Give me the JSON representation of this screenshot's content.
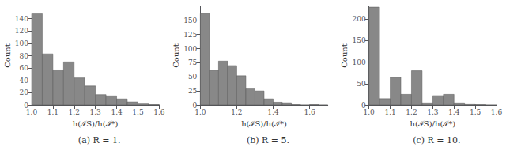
{
  "chart_data": [
    {
      "type": "histogram",
      "title": "(a) R = 1.",
      "xlabel": "h(ℐS)/h(ℐ*)",
      "ylabel": "Count",
      "xlim": [
        1.0,
        1.6
      ],
      "ylim": [
        0,
        160
      ],
      "xticks": [
        {
          "value": 1.0,
          "label": "1.0"
        },
        1.1,
        1.2,
        1.3,
        1.4,
        1.5,
        1.6
      ],
      "yticks": [
        0,
        20,
        40,
        60,
        80,
        100,
        120,
        140
      ],
      "bins": [
        1.0,
        1.05,
        1.1,
        1.15,
        1.2,
        1.25,
        1.3,
        1.35,
        1.4,
        1.45,
        1.5,
        1.55,
        1.6
      ],
      "values": [
        148,
        83,
        57,
        70,
        44,
        31,
        17,
        15,
        10,
        5,
        3,
        1
      ],
      "color": "#888888",
      "grid": false
    },
    {
      "type": "histogram",
      "title": "(b) R = 5.",
      "xlabel": "h(ℐS)/h(ℐ*)",
      "ylabel": "Count",
      "xlim": [
        1.0,
        1.7
      ],
      "ylim": [
        0,
        175
      ],
      "xticks": [
        {
          "value": 1.0,
          "label": "1.0"
        },
        1.2,
        1.4,
        1.6
      ],
      "yticks": [
        0,
        25,
        50,
        75,
        100,
        125,
        150
      ],
      "bins": [
        1.0,
        1.05,
        1.1,
        1.15,
        1.2,
        1.25,
        1.3,
        1.35,
        1.4,
        1.45,
        1.5,
        1.55,
        1.6,
        1.65,
        1.7
      ],
      "values": [
        162,
        62,
        78,
        70,
        52,
        30,
        25,
        11,
        5,
        4,
        1,
        0,
        1,
        0
      ],
      "color": "#888888",
      "grid": false
    },
    {
      "type": "histogram",
      "title": "(c) R = 10.",
      "xlabel": "h(ℐS)/h(ℐ*)",
      "ylabel": "Count",
      "xlim": [
        1.0,
        1.6
      ],
      "ylim": [
        0,
        230
      ],
      "xticks": [
        {
          "value": 1.0,
          "label": "1.0"
        },
        1.1,
        1.2,
        1.3,
        1.4,
        1.5,
        1.6
      ],
      "yticks": [
        0,
        50,
        100,
        150,
        200
      ],
      "bins": [
        1.0,
        1.05,
        1.1,
        1.15,
        1.2,
        1.25,
        1.3,
        1.35,
        1.4,
        1.45,
        1.5,
        1.55,
        1.6
      ],
      "values": [
        228,
        15,
        65,
        25,
        80,
        5,
        22,
        25,
        5,
        3,
        1,
        0
      ],
      "color": "#888888",
      "grid": false
    }
  ]
}
